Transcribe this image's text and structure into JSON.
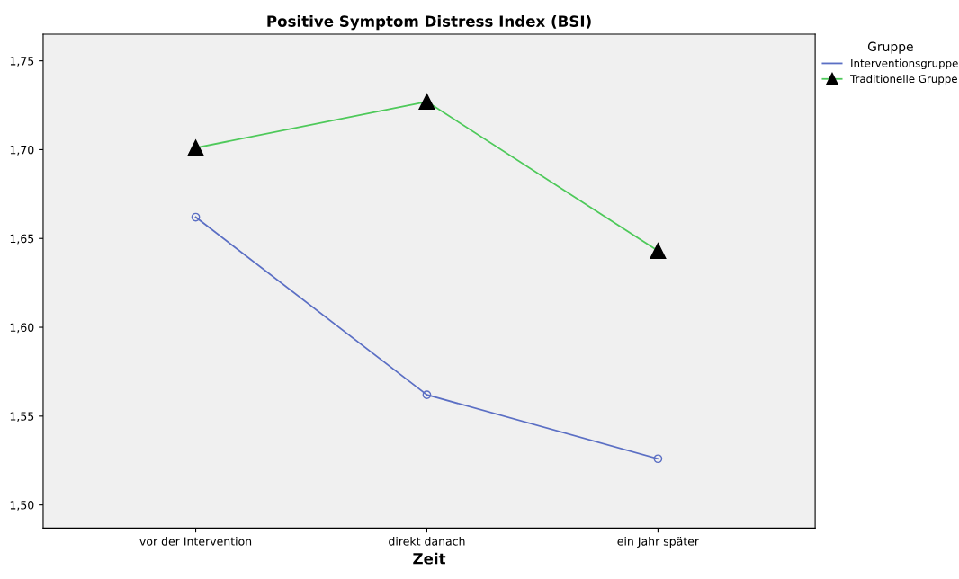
{
  "chart_data": {
    "type": "line",
    "title": "Positive Symptom Distress Index (BSI)",
    "xlabel": "Zeit",
    "legend_title": "Gruppe",
    "legend": "top right",
    "categories": [
      "vor der Intervention",
      "direkt danach",
      "ein Jahr später"
    ],
    "series": [
      {
        "name": "Interventionsgruppe",
        "color": "#5b6fc4",
        "marker": "circle",
        "values": [
          1.662,
          1.562,
          1.526
        ]
      },
      {
        "name": "Traditionelle Gruppe",
        "color": "#4ec95a",
        "marker": "triangle",
        "values": [
          1.701,
          1.727,
          1.643
        ]
      }
    ],
    "ylim": [
      1.487,
      1.765
    ],
    "yticks": [
      {
        "value": 1.5,
        "label": "1,50"
      },
      {
        "value": 1.55,
        "label": "1,55"
      },
      {
        "value": 1.6,
        "label": "1,60"
      },
      {
        "value": 1.65,
        "label": "1,65"
      },
      {
        "value": 1.7,
        "label": "1,70"
      },
      {
        "value": 1.75,
        "label": "1,75"
      }
    ],
    "grid": false
  }
}
